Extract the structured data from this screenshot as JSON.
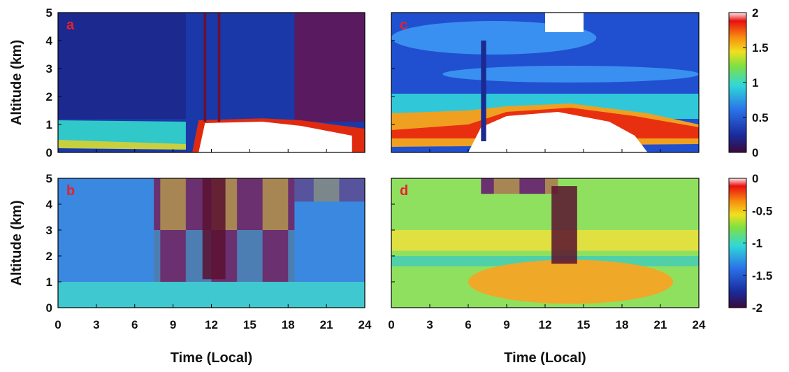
{
  "chart_data": [
    {
      "type": "heatmap",
      "label": "a",
      "ylabel": "Altitude (km)",
      "xlim": [
        0,
        24
      ],
      "ylim": [
        0,
        5
      ],
      "xticks": [
        0,
        3,
        6,
        9,
        12,
        15,
        18,
        21,
        24
      ],
      "yticks": [
        0,
        1,
        2,
        3,
        4,
        5
      ],
      "show_xticklabels": false,
      "show_yticklabels": true
    },
    {
      "type": "heatmap",
      "label": "b",
      "ylabel": "Altitude (km)",
      "xlabel": "Time (Local)",
      "xlim": [
        0,
        24
      ],
      "ylim": [
        0,
        5
      ],
      "xticks": [
        0,
        3,
        6,
        9,
        12,
        15,
        18,
        21,
        24
      ],
      "yticks": [
        0,
        1,
        2,
        3,
        4,
        5
      ],
      "show_xticklabels": true,
      "show_yticklabels": true
    },
    {
      "type": "heatmap",
      "label": "c",
      "xlim": [
        0,
        24
      ],
      "ylim": [
        0,
        5
      ],
      "xticks": [
        0,
        3,
        6,
        9,
        12,
        15,
        18,
        21,
        24
      ],
      "yticks": [
        0,
        1,
        2,
        3,
        4,
        5
      ],
      "show_xticklabels": false,
      "show_yticklabels": false
    },
    {
      "type": "heatmap",
      "label": "d",
      "xlabel": "Time (Local)",
      "xlim": [
        0,
        24
      ],
      "ylim": [
        0,
        5
      ],
      "xticks": [
        0,
        3,
        6,
        9,
        12,
        15,
        18,
        21,
        24
      ],
      "yticks": [
        0,
        1,
        2,
        3,
        4,
        5
      ],
      "show_xticklabels": true,
      "show_yticklabels": false
    },
    {
      "type": "colorbar",
      "ylim": [
        0,
        2
      ],
      "yticks": [
        0,
        0.5,
        1,
        1.5,
        2
      ]
    },
    {
      "type": "colorbar",
      "ylim": [
        -2,
        0
      ],
      "yticks": [
        -2,
        -1.5,
        -1,
        -0.5,
        0
      ]
    }
  ]
}
